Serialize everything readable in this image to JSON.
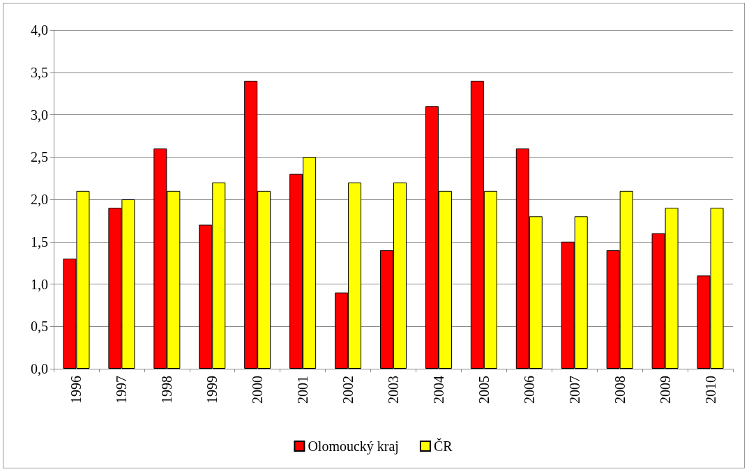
{
  "chart_data": {
    "type": "bar",
    "categories": [
      "1996",
      "1997",
      "1998",
      "1999",
      "2000",
      "2001",
      "2002",
      "2003",
      "2004",
      "2005",
      "2006",
      "2007",
      "2008",
      "2009",
      "2010"
    ],
    "series": [
      {
        "name": "Olomoucký kraj",
        "color": "#ff0000",
        "values": [
          1.3,
          1.9,
          2.6,
          1.7,
          3.4,
          2.3,
          0.9,
          1.4,
          3.1,
          3.4,
          2.6,
          1.5,
          1.4,
          1.6,
          1.1
        ]
      },
      {
        "name": "ČR",
        "color": "#ffff00",
        "values": [
          2.1,
          2.0,
          2.1,
          2.2,
          2.1,
          2.5,
          2.2,
          2.2,
          2.1,
          2.1,
          1.8,
          1.8,
          2.1,
          1.9,
          1.9
        ]
      }
    ],
    "ylim": [
      0,
      4
    ],
    "yticks": [
      {
        "value": 0,
        "label": "0,0"
      },
      {
        "value": 0.5,
        "label": "0,5"
      },
      {
        "value": 1,
        "label": "1,0"
      },
      {
        "value": 1.5,
        "label": "1,5"
      },
      {
        "value": 2,
        "label": "2,0"
      },
      {
        "value": 2.5,
        "label": "2,5"
      },
      {
        "value": 3,
        "label": "3,0"
      },
      {
        "value": 3.5,
        "label": "3,5"
      },
      {
        "value": 4,
        "label": "4,0"
      }
    ],
    "grid": "y",
    "legend": "bottom"
  }
}
